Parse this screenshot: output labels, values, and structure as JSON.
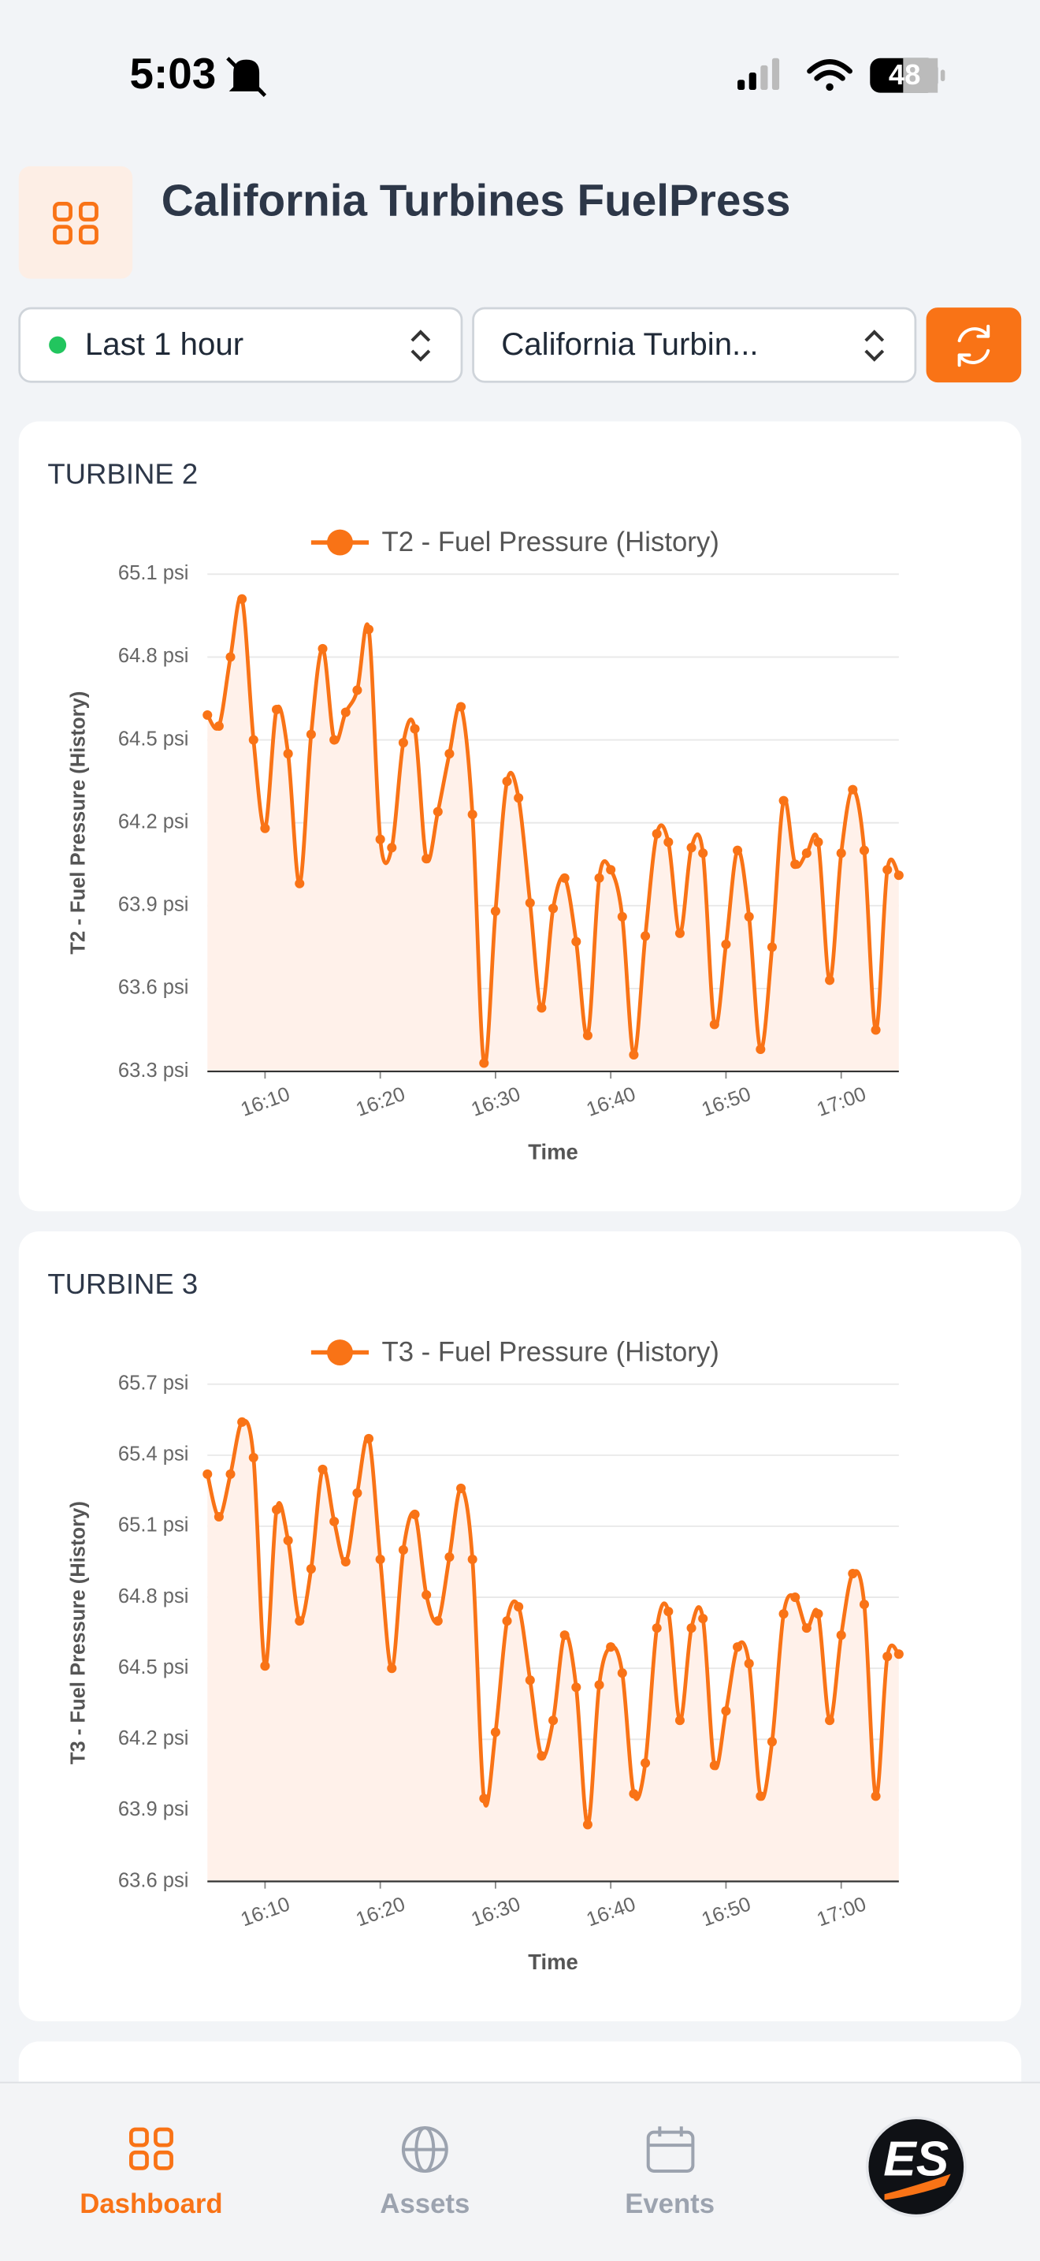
{
  "status_bar": {
    "time": "5:03",
    "battery": "48"
  },
  "header": {
    "title": "California Turbines FuelPress"
  },
  "controls": {
    "time_range": "Last 1 hour",
    "site": "California Turbin..."
  },
  "chart_data": [
    {
      "type": "line",
      "title": "TURBINE 2",
      "xlabel": "Time",
      "ylabel": "T2 - Fuel Pressure (History)",
      "x": [
        "16:05",
        "16:06",
        "16:07",
        "16:08",
        "16:09",
        "16:10",
        "16:11",
        "16:12",
        "16:13",
        "16:14",
        "16:15",
        "16:16",
        "16:17",
        "16:18",
        "16:19",
        "16:20",
        "16:21",
        "16:22",
        "16:23",
        "16:24",
        "16:25",
        "16:26",
        "16:27",
        "16:28",
        "16:29",
        "16:30",
        "16:31",
        "16:32",
        "16:33",
        "16:34",
        "16:35",
        "16:36",
        "16:37",
        "16:38",
        "16:39",
        "16:40",
        "16:41",
        "16:42",
        "16:43",
        "16:44",
        "16:45",
        "16:46",
        "16:47",
        "16:48",
        "16:49",
        "16:50",
        "16:51",
        "16:52",
        "16:53",
        "16:54",
        "16:55",
        "16:56",
        "16:57",
        "16:58",
        "16:59",
        "17:00",
        "17:01",
        "17:02",
        "17:03",
        "17:04",
        "17:05"
      ],
      "series": [
        {
          "name": "T2 - Fuel Pressure (History)",
          "color": "#f97316",
          "values": [
            64.59,
            64.55,
            64.8,
            65.01,
            64.5,
            64.18,
            64.61,
            64.45,
            63.98,
            64.52,
            64.83,
            64.5,
            64.6,
            64.68,
            64.9,
            64.14,
            64.11,
            64.49,
            64.54,
            64.07,
            64.24,
            64.45,
            64.62,
            64.23,
            63.33,
            63.88,
            64.35,
            64.29,
            63.91,
            63.53,
            63.89,
            64.0,
            63.77,
            63.43,
            64.0,
            64.03,
            63.86,
            63.36,
            63.79,
            64.16,
            64.13,
            63.8,
            64.11,
            64.09,
            63.47,
            63.76,
            64.1,
            63.86,
            63.38,
            63.75,
            64.28,
            64.05,
            64.09,
            64.13,
            63.63,
            64.09,
            64.32,
            64.1,
            63.45,
            64.03,
            64.01
          ]
        }
      ],
      "xlim": [
        "16:05",
        "17:05"
      ],
      "xticks": [
        "16:10",
        "16:20",
        "16:30",
        "16:40",
        "16:50",
        "17:00"
      ],
      "ylim": [
        63.3,
        65.1
      ],
      "yticks": [
        {
          "value": 63.3,
          "label": "63.3 psi"
        },
        {
          "value": 63.6,
          "label": "63.6 psi"
        },
        {
          "value": 63.9,
          "label": "63.9 psi"
        },
        {
          "value": 64.2,
          "label": "64.2 psi"
        },
        {
          "value": 64.5,
          "label": "64.5 psi"
        },
        {
          "value": 64.8,
          "label": "64.8 psi"
        },
        {
          "value": 65.1,
          "label": "65.1 psi"
        }
      ],
      "grid": true,
      "fill_color": "#fff1ea"
    },
    {
      "type": "line",
      "title": "TURBINE 3",
      "xlabel": "Time",
      "ylabel": "T3 - Fuel Pressure (History)",
      "x": [
        "16:05",
        "16:06",
        "16:07",
        "16:08",
        "16:09",
        "16:10",
        "16:11",
        "16:12",
        "16:13",
        "16:14",
        "16:15",
        "16:16",
        "16:17",
        "16:18",
        "16:19",
        "16:20",
        "16:21",
        "16:22",
        "16:23",
        "16:24",
        "16:25",
        "16:26",
        "16:27",
        "16:28",
        "16:29",
        "16:30",
        "16:31",
        "16:32",
        "16:33",
        "16:34",
        "16:35",
        "16:36",
        "16:37",
        "16:38",
        "16:39",
        "16:40",
        "16:41",
        "16:42",
        "16:43",
        "16:44",
        "16:45",
        "16:46",
        "16:47",
        "16:48",
        "16:49",
        "16:50",
        "16:51",
        "16:52",
        "16:53",
        "16:54",
        "16:55",
        "16:56",
        "16:57",
        "16:58",
        "16:59",
        "17:00",
        "17:01",
        "17:02",
        "17:03",
        "17:04",
        "17:05"
      ],
      "series": [
        {
          "name": "T3 - Fuel Pressure (History)",
          "color": "#f97316",
          "values": [
            65.32,
            65.14,
            65.32,
            65.54,
            65.39,
            64.51,
            65.17,
            65.04,
            64.7,
            64.92,
            65.34,
            65.12,
            64.95,
            65.24,
            65.47,
            64.96,
            64.5,
            65.0,
            65.15,
            64.81,
            64.7,
            64.97,
            65.26,
            64.96,
            63.95,
            64.23,
            64.7,
            64.76,
            64.45,
            64.13,
            64.28,
            64.64,
            64.42,
            63.84,
            64.43,
            64.59,
            64.48,
            63.97,
            64.1,
            64.67,
            64.74,
            64.28,
            64.67,
            64.71,
            64.09,
            64.32,
            64.59,
            64.52,
            63.96,
            64.19,
            64.73,
            64.8,
            64.67,
            64.73,
            64.28,
            64.64,
            64.9,
            64.77,
            63.96,
            64.55,
            64.56
          ]
        }
      ],
      "xlim": [
        "16:05",
        "17:05"
      ],
      "xticks": [
        "16:10",
        "16:20",
        "16:30",
        "16:40",
        "16:50",
        "17:00"
      ],
      "ylim": [
        63.6,
        65.7
      ],
      "yticks": [
        {
          "value": 63.6,
          "label": "63.6 psi"
        },
        {
          "value": 63.9,
          "label": "63.9 psi"
        },
        {
          "value": 64.2,
          "label": "64.2 psi"
        },
        {
          "value": 64.5,
          "label": "64.5 psi"
        },
        {
          "value": 64.8,
          "label": "64.8 psi"
        },
        {
          "value": 65.1,
          "label": "65.1 psi"
        },
        {
          "value": 65.4,
          "label": "65.4 psi"
        },
        {
          "value": 65.7,
          "label": "65.7 psi"
        }
      ],
      "grid": true,
      "fill_color": "#fff1ea"
    }
  ],
  "nav": {
    "items": [
      "Dashboard",
      "Assets",
      "Events"
    ],
    "logo": "ES"
  }
}
